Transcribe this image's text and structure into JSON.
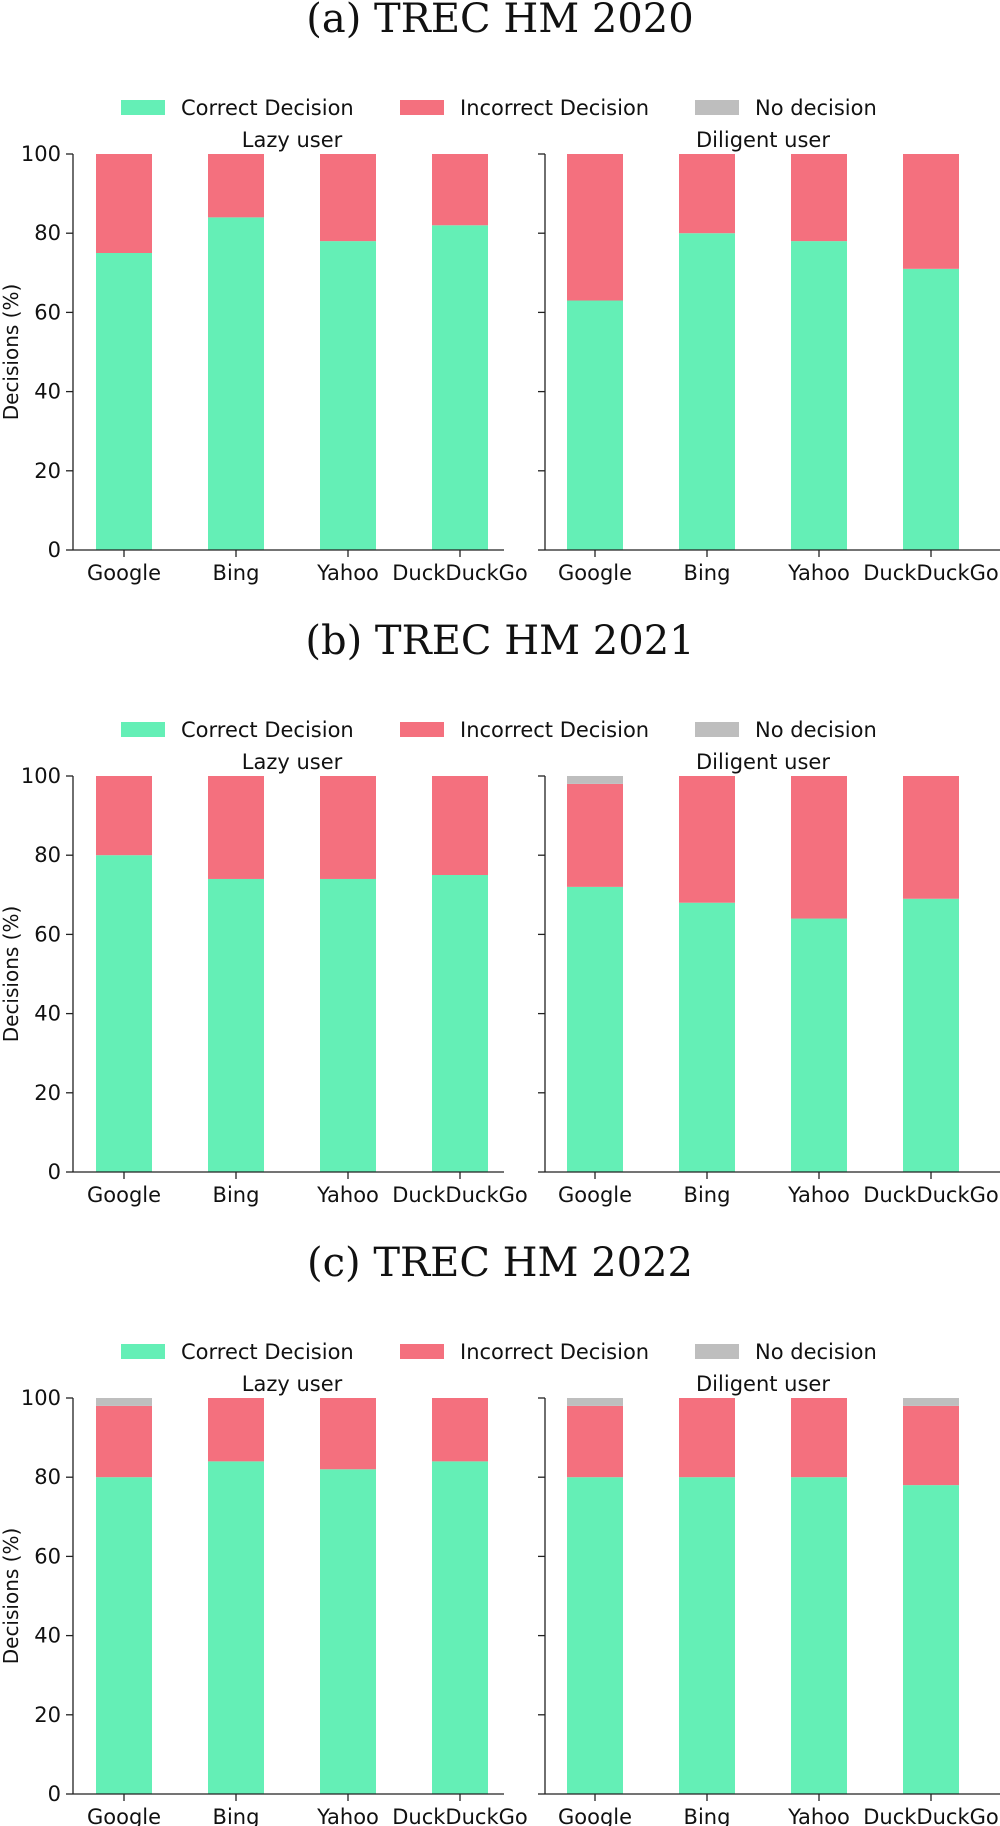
{
  "legend": {
    "entries": [
      {
        "label": "Correct Decision",
        "color": "#64efb6"
      },
      {
        "label": "Incorrect Decision",
        "color": "#f4707e"
      },
      {
        "label": "No decision",
        "color": "#bebebe"
      }
    ]
  },
  "chart_data": [
    {
      "type": "bar",
      "stacked": true,
      "title": "(a) TREC HM 2020",
      "ylabel": "Decisions (%)",
      "ylim": [
        0,
        100
      ],
      "yticks": [
        0,
        20,
        40,
        60,
        80,
        100
      ],
      "grid": false,
      "legend_position": "top",
      "subplots": [
        {
          "title": "Lazy user",
          "categories": [
            "Google",
            "Bing",
            "Yahoo",
            "DuckDuckGo"
          ],
          "series": [
            {
              "name": "Correct Decision",
              "values": [
                75,
                84,
                78,
                82
              ]
            },
            {
              "name": "Incorrect Decision",
              "values": [
                25,
                16,
                22,
                18
              ]
            },
            {
              "name": "No decision",
              "values": [
                0,
                0,
                0,
                0
              ]
            }
          ]
        },
        {
          "title": "Diligent user",
          "categories": [
            "Google",
            "Bing",
            "Yahoo",
            "DuckDuckGo"
          ],
          "series": [
            {
              "name": "Correct Decision",
              "values": [
                63,
                80,
                78,
                71
              ]
            },
            {
              "name": "Incorrect Decision",
              "values": [
                37,
                20,
                22,
                29
              ]
            },
            {
              "name": "No decision",
              "values": [
                0,
                0,
                0,
                0
              ]
            }
          ]
        }
      ]
    },
    {
      "type": "bar",
      "stacked": true,
      "title": "(b) TREC HM 2021",
      "ylabel": "Decisions (%)",
      "ylim": [
        0,
        100
      ],
      "yticks": [
        0,
        20,
        40,
        60,
        80,
        100
      ],
      "grid": false,
      "legend_position": "top",
      "subplots": [
        {
          "title": "Lazy user",
          "categories": [
            "Google",
            "Bing",
            "Yahoo",
            "DuckDuckGo"
          ],
          "series": [
            {
              "name": "Correct Decision",
              "values": [
                80,
                74,
                74,
                75
              ]
            },
            {
              "name": "Incorrect Decision",
              "values": [
                20,
                26,
                26,
                25
              ]
            },
            {
              "name": "No decision",
              "values": [
                0,
                0,
                0,
                0
              ]
            }
          ]
        },
        {
          "title": "Diligent user",
          "categories": [
            "Google",
            "Bing",
            "Yahoo",
            "DuckDuckGo"
          ],
          "series": [
            {
              "name": "Correct Decision",
              "values": [
                72,
                68,
                64,
                69
              ]
            },
            {
              "name": "Incorrect Decision",
              "values": [
                26,
                32,
                36,
                31
              ]
            },
            {
              "name": "No decision",
              "values": [
                2,
                0,
                0,
                0
              ]
            }
          ]
        }
      ]
    },
    {
      "type": "bar",
      "stacked": true,
      "title": "(c) TREC HM 2022",
      "ylabel": "Decisions (%)",
      "ylim": [
        0,
        100
      ],
      "yticks": [
        0,
        20,
        40,
        60,
        80,
        100
      ],
      "grid": false,
      "legend_position": "top",
      "subplots": [
        {
          "title": "Lazy user",
          "categories": [
            "Google",
            "Bing",
            "Yahoo",
            "DuckDuckGo"
          ],
          "series": [
            {
              "name": "Correct Decision",
              "values": [
                80,
                84,
                82,
                84
              ]
            },
            {
              "name": "Incorrect Decision",
              "values": [
                18,
                16,
                18,
                16
              ]
            },
            {
              "name": "No decision",
              "values": [
                2,
                0,
                0,
                0
              ]
            }
          ]
        },
        {
          "title": "Diligent user",
          "categories": [
            "Google",
            "Bing",
            "Yahoo",
            "DuckDuckGo"
          ],
          "series": [
            {
              "name": "Correct Decision",
              "values": [
                80,
                80,
                80,
                78
              ]
            },
            {
              "name": "Incorrect Decision",
              "values": [
                18,
                20,
                20,
                20
              ]
            },
            {
              "name": "No decision",
              "values": [
                2,
                0,
                0,
                2
              ]
            }
          ]
        }
      ]
    }
  ]
}
